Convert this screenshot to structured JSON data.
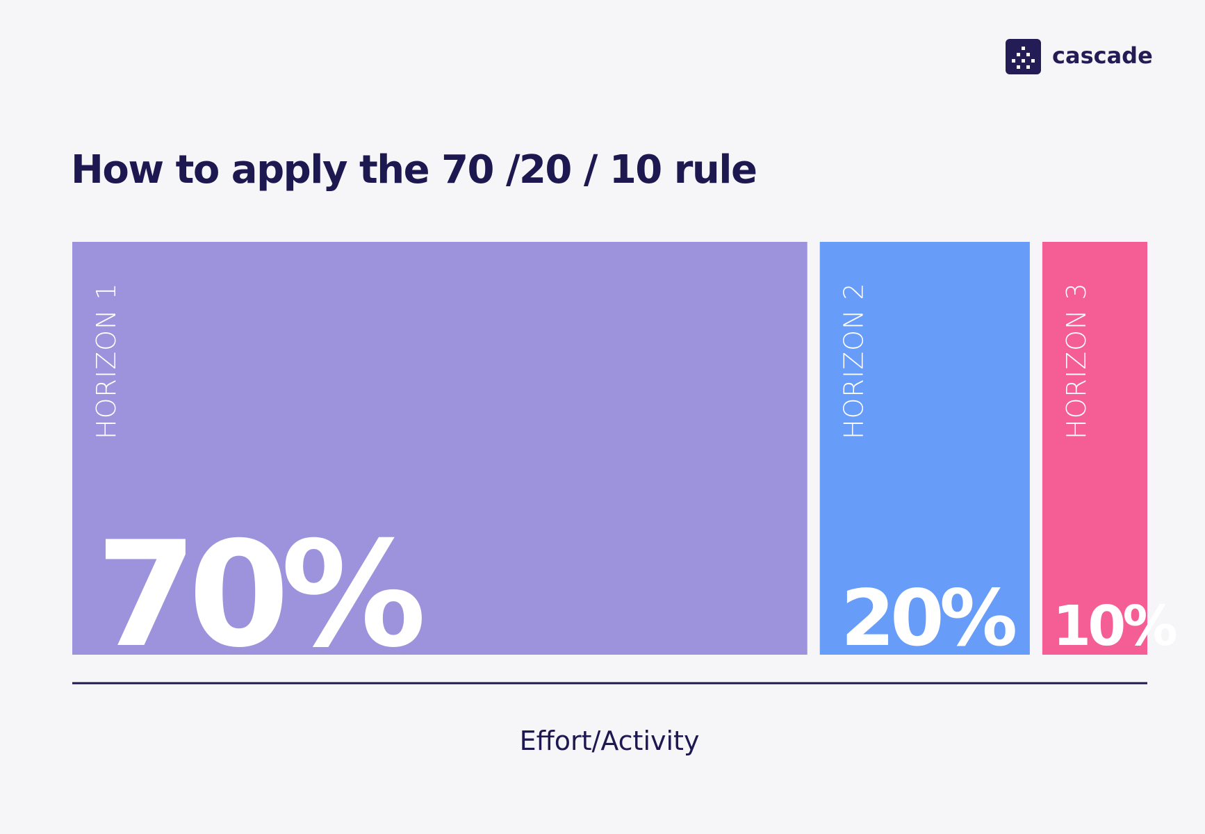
{
  "brand": "cascade",
  "chart_data": {
    "type": "proportion",
    "title": "How to apply the 70 /20 / 10 rule",
    "x_label": "Effort/Activity",
    "categories": [
      "HORIZON 1",
      "HORIZON 2",
      "HORIZON 3"
    ],
    "values": [
      70,
      20,
      10
    ],
    "value_labels": [
      "70%",
      "20%",
      "10%"
    ],
    "colors": [
      "#9c93dc",
      "#679df9",
      "#f45e94"
    ]
  }
}
